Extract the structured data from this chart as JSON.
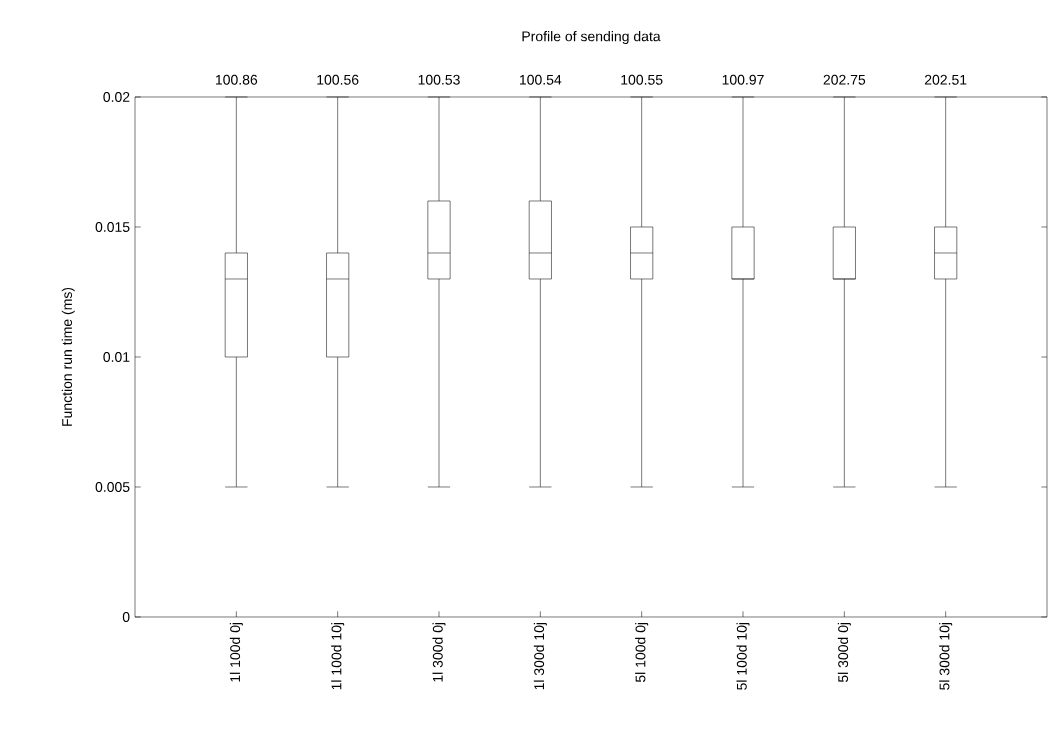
{
  "chart_data": {
    "type": "box",
    "title": "Profile of sending data",
    "ylabel": "Function run time (ms)",
    "categories": [
      "1l 100d 0j",
      "1l 100d 10j",
      "1l 300d 0j",
      "1l 300d 10j",
      "5l 100d 0j",
      "5l 100d 10j",
      "5l 300d 0j",
      "5l 300d 10j"
    ],
    "boxes": [
      {
        "low": 0.005,
        "q1": 0.01,
        "median": 0.013,
        "q3": 0.014,
        "high": 0.02
      },
      {
        "low": 0.005,
        "q1": 0.01,
        "median": 0.013,
        "q3": 0.014,
        "high": 0.02
      },
      {
        "low": 0.005,
        "q1": 0.013,
        "median": 0.014,
        "q3": 0.016,
        "high": 0.02
      },
      {
        "low": 0.005,
        "q1": 0.013,
        "median": 0.014,
        "q3": 0.016,
        "high": 0.02
      },
      {
        "low": 0.005,
        "q1": 0.013,
        "median": 0.014,
        "q3": 0.015,
        "high": 0.02
      },
      {
        "low": 0.005,
        "q1": 0.013,
        "median": 0.013,
        "q3": 0.015,
        "high": 0.02
      },
      {
        "low": 0.005,
        "q1": 0.013,
        "median": 0.013,
        "q3": 0.015,
        "high": 0.02
      },
      {
        "low": 0.005,
        "q1": 0.013,
        "median": 0.014,
        "q3": 0.015,
        "high": 0.02
      }
    ],
    "color": "#000000",
    "ylim": [
      0,
      0.02
    ],
    "yticks": [
      0,
      0.005,
      0.01,
      0.015,
      0.02
    ],
    "grid": false,
    "annotations": [
      "100.86",
      "100.56",
      "100.53",
      "100.54",
      "100.55",
      "100.97",
      "202.75",
      "202.51"
    ]
  }
}
